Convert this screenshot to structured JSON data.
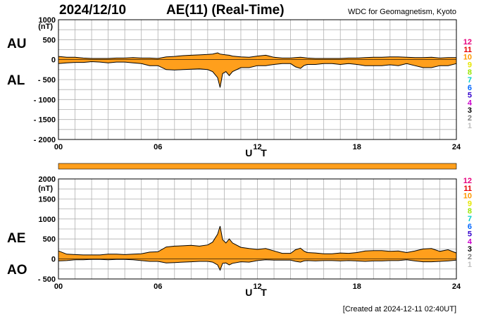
{
  "header": {
    "date": "2024/12/10",
    "title": "AE(11) (Real-Time)",
    "institution": "WDC for Geomagnetism, Kyoto",
    "created": "[Created at 2024-12-11 02:40UT]"
  },
  "colors": {
    "fill": "#ff9f1c",
    "stroke": "#000000",
    "grid": "#b0b0b0",
    "bar": "#ff9f1c"
  },
  "quality_levels": [
    {
      "label": "12",
      "color": "#e6007e"
    },
    {
      "label": "11",
      "color": "#e60000"
    },
    {
      "label": "10",
      "color": "#ff9900"
    },
    {
      "label": "9",
      "color": "#e6e600"
    },
    {
      "label": "8",
      "color": "#99e600"
    },
    {
      "label": "7",
      "color": "#00cccc"
    },
    {
      "label": "6",
      "color": "#0066ff"
    },
    {
      "label": "5",
      "color": "#3300cc"
    },
    {
      "label": "4",
      "color": "#cc00cc"
    },
    {
      "label": "3",
      "color": "#000000"
    },
    {
      "label": "2",
      "color": "#808080"
    },
    {
      "label": "1",
      "color": "#c0c0c0"
    }
  ],
  "chart_data": [
    {
      "type": "area",
      "unit": "(nT)",
      "upper_label": "AU",
      "lower_label": "AL",
      "xlabel": "U T",
      "xticks": [
        "00",
        "06",
        "12",
        "18",
        "24"
      ],
      "xlim": [
        0,
        24
      ],
      "ylim": [
        -2000,
        1000
      ],
      "yticks": [
        "1000",
        "500",
        "0",
        "- 500",
        "- 1000",
        "- 1500",
        "- 2000"
      ],
      "ytick_values": [
        1000,
        500,
        0,
        -500,
        -1000,
        -1500,
        -2000
      ],
      "grid": true,
      "x": [
        0,
        0.5,
        1,
        1.5,
        2,
        2.5,
        3,
        3.5,
        4,
        4.5,
        5,
        5.5,
        6,
        6.5,
        7,
        7.5,
        8,
        8.5,
        9,
        9.3,
        9.6,
        9.75,
        9.9,
        10.1,
        10.3,
        10.5,
        11,
        11.5,
        12,
        12.5,
        13,
        13.5,
        14,
        14.3,
        14.6,
        14.8,
        15,
        15.5,
        16,
        16.5,
        17,
        17.5,
        18,
        18.5,
        19,
        19.5,
        20,
        20.5,
        21,
        21.5,
        22,
        22.5,
        23,
        23.5,
        24
      ],
      "series": [
        {
          "values": [
            80,
            60,
            60,
            40,
            30,
            30,
            30,
            40,
            40,
            50,
            40,
            40,
            30,
            70,
            80,
            100,
            110,
            120,
            130,
            140,
            170,
            140,
            130,
            120,
            110,
            90,
            70,
            60,
            90,
            110,
            60,
            40,
            40,
            50,
            60,
            50,
            40,
            30,
            30,
            30,
            30,
            40,
            40,
            50,
            60,
            60,
            70,
            70,
            60,
            50,
            50,
            60,
            40,
            50,
            50
          ]
        },
        {
          "values": [
            -100,
            -80,
            -70,
            -70,
            -50,
            -60,
            -80,
            -60,
            -60,
            -80,
            -100,
            -150,
            -150,
            -250,
            -260,
            -250,
            -240,
            -230,
            -250,
            -300,
            -450,
            -700,
            -350,
            -300,
            -400,
            -300,
            -200,
            -200,
            -150,
            -150,
            -120,
            -100,
            -100,
            -180,
            -220,
            -150,
            -120,
            -120,
            -100,
            -100,
            -120,
            -100,
            -120,
            -150,
            -150,
            -150,
            -130,
            -150,
            -100,
            -150,
            -200,
            -200,
            -150,
            -150,
            -100
          ]
        }
      ]
    },
    {
      "type": "area",
      "unit": "(nT)",
      "upper_label": "AE",
      "lower_label": "AO",
      "xlabel": "U T",
      "xticks": [
        "00",
        "06",
        "12",
        "18",
        "24"
      ],
      "xlim": [
        0,
        24
      ],
      "ylim": [
        -500,
        2000
      ],
      "yticks": [
        "2000",
        "1500",
        "1000",
        "500",
        "0",
        "- 500"
      ],
      "ytick_values": [
        2000,
        1500,
        1000,
        500,
        0,
        -500
      ],
      "grid": true,
      "x": [
        0,
        0.5,
        1,
        1.5,
        2,
        2.5,
        3,
        3.5,
        4,
        4.5,
        5,
        5.5,
        6,
        6.5,
        7,
        7.5,
        8,
        8.5,
        9,
        9.3,
        9.6,
        9.75,
        9.9,
        10.1,
        10.3,
        10.5,
        11,
        11.5,
        12,
        12.5,
        13,
        13.5,
        14,
        14.3,
        14.6,
        14.8,
        15,
        15.5,
        16,
        16.5,
        17,
        17.5,
        18,
        18.5,
        19,
        19.5,
        20,
        20.5,
        21,
        21.5,
        22,
        22.5,
        23,
        23.5,
        24
      ],
      "series": [
        {
          "values": [
            200,
            120,
            110,
            100,
            100,
            100,
            120,
            120,
            110,
            120,
            130,
            170,
            180,
            300,
            320,
            330,
            340,
            320,
            350,
            420,
            620,
            820,
            480,
            400,
            500,
            400,
            290,
            260,
            240,
            260,
            200,
            140,
            140,
            230,
            270,
            200,
            160,
            150,
            130,
            130,
            150,
            140,
            160,
            200,
            210,
            210,
            190,
            200,
            160,
            200,
            250,
            260,
            190,
            230,
            150
          ]
        },
        {
          "values": [
            -50,
            -40,
            -20,
            -20,
            -10,
            -10,
            -20,
            -10,
            -10,
            -20,
            -40,
            -60,
            -60,
            -100,
            -90,
            -80,
            -70,
            -60,
            -60,
            -80,
            -150,
            -280,
            -110,
            -100,
            -150,
            -110,
            -70,
            -80,
            -40,
            -20,
            -30,
            -30,
            -30,
            -60,
            -80,
            -50,
            -40,
            -50,
            -40,
            -40,
            -50,
            -40,
            -50,
            -60,
            -50,
            -50,
            -40,
            -40,
            -20,
            -50,
            -70,
            -70,
            -60,
            -50,
            -30
          ]
        }
      ]
    }
  ]
}
